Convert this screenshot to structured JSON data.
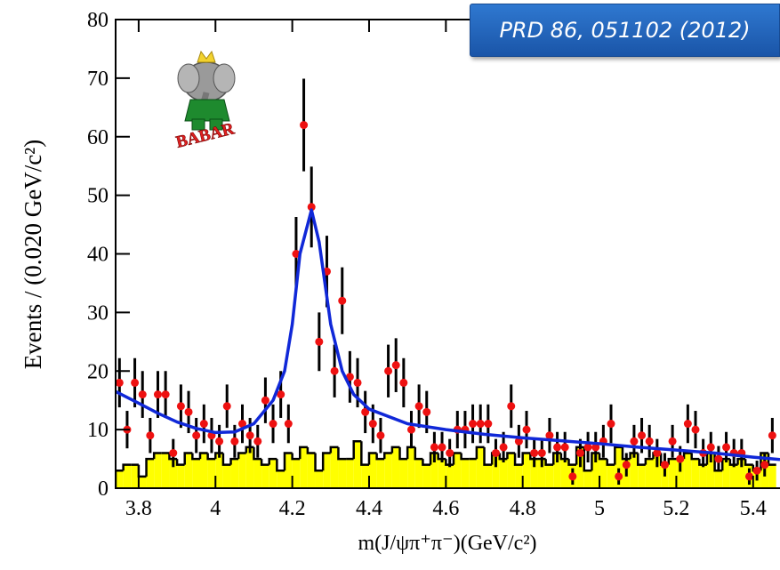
{
  "chart_data": {
    "type": "scatter",
    "annotation": "PRD 86, 051102 (2012)",
    "logo_text": "BABAR",
    "x_label": "m(J/ψπ⁺π⁻)(GeV/c²)",
    "y_label": "Events / (0.020 GeV/c²)",
    "xlim": [
      3.74,
      5.47
    ],
    "ylim": [
      0,
      80
    ],
    "xticks": [
      3.8,
      4,
      4.2,
      4.4,
      4.6,
      4.8,
      5,
      5.2,
      5.4
    ],
    "yticks": [
      0,
      10,
      20,
      30,
      40,
      50,
      60,
      70,
      80
    ],
    "x": [
      3.75,
      3.77,
      3.79,
      3.81,
      3.83,
      3.85,
      3.87,
      3.89,
      3.91,
      3.93,
      3.95,
      3.97,
      3.99,
      4.01,
      4.03,
      4.05,
      4.07,
      4.09,
      4.11,
      4.13,
      4.15,
      4.17,
      4.19,
      4.21,
      4.23,
      4.25,
      4.27,
      4.29,
      4.31,
      4.33,
      4.35,
      4.37,
      4.39,
      4.41,
      4.43,
      4.45,
      4.47,
      4.49,
      4.51,
      4.53,
      4.55,
      4.57,
      4.59,
      4.61,
      4.63,
      4.65,
      4.67,
      4.69,
      4.71,
      4.73,
      4.75,
      4.77,
      4.79,
      4.81,
      4.83,
      4.85,
      4.87,
      4.89,
      4.91,
      4.93,
      4.95,
      4.97,
      4.99,
      5.01,
      5.03,
      5.05,
      5.07,
      5.09,
      5.11,
      5.13,
      5.15,
      5.17,
      5.19,
      5.21,
      5.23,
      5.25,
      5.27,
      5.29,
      5.31,
      5.33,
      5.35,
      5.37,
      5.39,
      5.41,
      5.43,
      5.45
    ],
    "points": {
      "color": "#ee1111",
      "values": [
        18,
        10,
        18,
        16,
        9,
        16,
        16,
        6,
        14,
        13,
        9,
        11,
        9,
        8,
        14,
        8,
        11,
        9,
        8,
        15,
        11,
        16,
        11,
        40,
        62,
        48,
        25,
        37,
        20,
        32,
        19,
        18,
        13,
        11,
        9,
        20,
        21,
        18,
        10,
        14,
        13,
        7,
        7,
        6,
        10,
        10,
        11,
        11,
        11,
        6,
        7,
        14,
        8,
        10,
        6,
        6,
        9,
        7,
        7,
        2,
        6,
        7,
        7,
        8,
        11,
        2,
        4,
        8,
        9,
        8,
        6,
        4,
        8,
        5,
        11,
        10,
        6,
        7,
        5,
        7,
        6,
        6,
        2,
        3,
        4,
        9
      ],
      "errors": [
        4.2,
        3.2,
        4.2,
        4,
        3,
        4,
        4,
        2.4,
        3.7,
        3.6,
        3,
        3.3,
        3,
        2.8,
        3.7,
        2.8,
        3.3,
        3,
        2.8,
        3.9,
        3.3,
        4,
        3.3,
        6.3,
        7.9,
        6.9,
        5,
        6.1,
        4.5,
        5.7,
        4.4,
        4.2,
        3.6,
        3.3,
        3,
        4.5,
        4.6,
        4.2,
        3.2,
        3.7,
        3.6,
        2.6,
        2.6,
        2.4,
        3.2,
        3.2,
        3.3,
        3.3,
        3.3,
        2.4,
        2.6,
        3.7,
        2.8,
        3.2,
        2.4,
        2.4,
        3,
        2.6,
        2.6,
        1.4,
        2.4,
        2.6,
        2.6,
        2.8,
        3.3,
        1.4,
        2,
        2.8,
        3,
        2.8,
        2.4,
        2,
        2.8,
        2.2,
        3.3,
        3.2,
        2.4,
        2.6,
        2.2,
        2.6,
        2.4,
        2.4,
        1.4,
        1.7,
        2,
        3
      ]
    },
    "fit": {
      "color": "#1028d8",
      "x": [
        3.74,
        3.8,
        3.85,
        3.9,
        3.95,
        4.0,
        4.05,
        4.1,
        4.15,
        4.18,
        4.2,
        4.22,
        4.25,
        4.27,
        4.3,
        4.33,
        4.36,
        4.4,
        4.5,
        4.6,
        4.7,
        4.8,
        4.9,
        5.0,
        5.1,
        5.2,
        5.3,
        5.4,
        5.47
      ],
      "values": [
        16.5,
        14.5,
        12.8,
        11.3,
        10.2,
        9.5,
        9.6,
        11,
        15,
        20,
        28,
        40,
        47.5,
        42,
        28,
        20,
        16,
        13.5,
        11,
        10,
        9.2,
        8.6,
        8.1,
        7.6,
        7.0,
        6.5,
        6.0,
        5.3,
        4.9
      ]
    },
    "background": {
      "color": "#ffff00",
      "bins": [
        3.74,
        3.76,
        3.78,
        3.8,
        3.82,
        3.84,
        3.86,
        3.88,
        3.9,
        3.92,
        3.94,
        3.96,
        3.98,
        4.0,
        4.02,
        4.04,
        4.06,
        4.08,
        4.1,
        4.12,
        4.14,
        4.16,
        4.18,
        4.2,
        4.22,
        4.24,
        4.26,
        4.28,
        4.3,
        4.32,
        4.34,
        4.36,
        4.38,
        4.4,
        4.42,
        4.44,
        4.46,
        4.48,
        4.5,
        4.52,
        4.54,
        4.56,
        4.58,
        4.6,
        4.62,
        4.64,
        4.66,
        4.68,
        4.7,
        4.72,
        4.74,
        4.76,
        4.78,
        4.8,
        4.82,
        4.84,
        4.86,
        4.88,
        4.9,
        4.92,
        4.94,
        4.96,
        4.98,
        5.0,
        5.02,
        5.04,
        5.06,
        5.08,
        5.1,
        5.12,
        5.14,
        5.16,
        5.18,
        5.2,
        5.22,
        5.24,
        5.26,
        5.28,
        5.3,
        5.32,
        5.34,
        5.36,
        5.38,
        5.4,
        5.42,
        5.44,
        5.46
      ],
      "counts": [
        3,
        4,
        4,
        2,
        5,
        6,
        6,
        5,
        4,
        6,
        5,
        6,
        5,
        6,
        4,
        5,
        6,
        7,
        5,
        4,
        5,
        3,
        6,
        5,
        7,
        6,
        3,
        6,
        7,
        5,
        5,
        8,
        4,
        6,
        5,
        6,
        7,
        5,
        7,
        5,
        4,
        6,
        5,
        4,
        6,
        5,
        5,
        7,
        4,
        6,
        5,
        6,
        4,
        6,
        5,
        5,
        4,
        6,
        5,
        4,
        7,
        3,
        6,
        5,
        4,
        7,
        5,
        6,
        4,
        5,
        6,
        4,
        5,
        5,
        6,
        5,
        4,
        6,
        3,
        5,
        4,
        5,
        4,
        3,
        6,
        4
      ]
    }
  }
}
